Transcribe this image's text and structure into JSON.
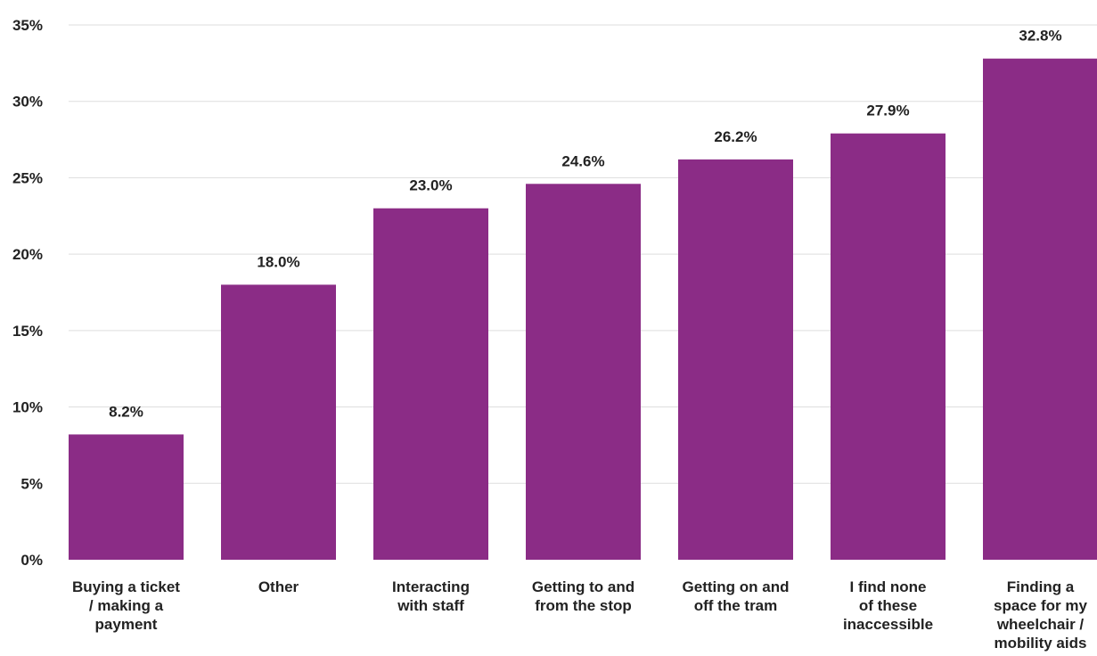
{
  "chart_data": {
    "type": "bar",
    "categories": [
      [
        "Buying a ticket",
        "/ making a",
        "payment"
      ],
      [
        "Other"
      ],
      [
        "Interacting",
        "with staff"
      ],
      [
        "Getting to and",
        "from the stop"
      ],
      [
        "Getting on and",
        "off the tram"
      ],
      [
        "I find none",
        "of these",
        "inaccessible"
      ],
      [
        "Finding a",
        "space for my",
        "wheelchair /",
        "mobility aids"
      ]
    ],
    "values": [
      8.2,
      18.0,
      23.0,
      24.6,
      26.2,
      27.9,
      32.8
    ],
    "data_labels": [
      "8.2%",
      "18.0%",
      "23.0%",
      "24.6%",
      "26.2%",
      "27.9%",
      "32.8%"
    ],
    "yticks": [
      0,
      5,
      10,
      15,
      20,
      25,
      30,
      35
    ],
    "ytick_labels": [
      "0%",
      "5%",
      "10%",
      "15%",
      "20%",
      "25%",
      "30%",
      "35%"
    ],
    "ylim": [
      0,
      35
    ],
    "title": "",
    "xlabel": "",
    "ylabel": "",
    "grid": true,
    "colors": {
      "bar": "#8b2c86",
      "grid": "#dddddd",
      "text": "#222222"
    }
  }
}
